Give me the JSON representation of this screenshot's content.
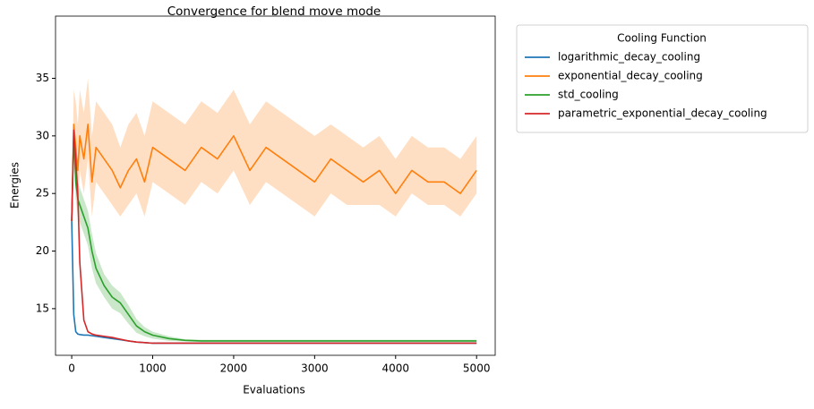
{
  "chart_data": {
    "type": "line",
    "title": "Convergence for blend move mode",
    "x_label": "Evaluations",
    "y_label": "Energies",
    "legend_title": "Cooling Function",
    "legend_position": "outside-upper-right",
    "x": [
      0,
      25,
      50,
      75,
      100,
      150,
      200,
      250,
      300,
      400,
      500,
      600,
      700,
      800,
      900,
      1000,
      1200,
      1400,
      1600,
      1800,
      2000,
      2200,
      2400,
      2600,
      2800,
      3000,
      3200,
      3400,
      3600,
      3800,
      4000,
      4200,
      4400,
      4600,
      4800,
      5000
    ],
    "xlim": [
      -200,
      5230
    ],
    "xticks": [
      0,
      1000,
      2000,
      3000,
      4000,
      5000
    ],
    "ylim": [
      10.95,
      40.4
    ],
    "yticks": [
      15,
      20,
      25,
      30,
      35
    ],
    "series": [
      {
        "name": "logarithmic_decay_cooling",
        "color": "#1f77b4",
        "values": [
          22.6,
          14.5,
          13,
          12.8,
          12.75,
          12.7,
          12.7,
          12.65,
          12.6,
          12.5,
          12.4,
          12.3,
          12.2,
          12.1,
          12.05,
          12,
          12,
          12,
          12,
          12,
          12,
          12,
          12,
          12,
          12,
          12,
          12,
          12,
          12,
          12,
          12,
          12,
          12,
          12,
          12,
          12
        ]
      },
      {
        "name": "exponential_decay_cooling",
        "color": "#ff7f0e",
        "values": [
          22.6,
          31,
          29,
          27,
          30,
          28,
          31,
          26,
          29,
          28,
          27,
          25.5,
          27,
          28,
          26,
          29,
          28,
          27,
          29,
          28,
          30,
          27,
          29,
          28,
          27,
          26,
          28,
          27,
          26,
          27,
          25,
          27,
          26,
          26,
          25,
          27
        ],
        "upper": [
          23,
          34,
          33,
          31,
          34,
          32,
          35,
          30,
          33,
          32,
          31,
          29,
          31,
          32,
          30,
          33,
          32,
          31,
          33,
          32,
          34,
          31,
          33,
          32,
          31,
          30,
          31,
          30,
          29,
          30,
          28,
          30,
          29,
          29,
          28,
          30
        ],
        "lower": [
          22,
          28,
          26,
          24,
          27,
          25,
          28,
          23,
          26,
          25,
          24,
          23,
          24,
          25,
          23,
          26,
          25,
          24,
          26,
          25,
          27,
          24,
          26,
          25,
          24,
          23,
          25,
          24,
          24,
          24,
          23,
          25,
          24,
          24,
          23,
          25
        ]
      },
      {
        "name": "std_cooling",
        "color": "#2ca02c",
        "values": [
          22.6,
          30,
          26,
          24.5,
          24,
          23,
          22,
          20,
          18.5,
          17,
          16,
          15.5,
          14.5,
          13.5,
          13,
          12.7,
          12.4,
          12.25,
          12.2,
          12.2,
          12.2,
          12.2,
          12.2,
          12.2,
          12.2,
          12.2,
          12.2,
          12.2,
          12.2,
          12.2,
          12.2,
          12.2,
          12.2,
          12.2,
          12.2,
          12.2
        ],
        "upper": [
          22.8,
          31,
          27.5,
          26,
          25.5,
          24.5,
          23.5,
          21.5,
          19.8,
          18,
          17,
          16.4,
          15.3,
          14.1,
          13.4,
          13,
          12.6,
          12.35,
          12.3,
          12.3,
          12.3,
          12.3,
          12.3,
          12.3,
          12.3,
          12.3,
          12.3,
          12.3,
          12.3,
          12.3,
          12.3,
          12.3,
          12.3,
          12.3,
          12.3,
          12.3
        ],
        "lower": [
          22.4,
          29,
          24.5,
          23,
          22.5,
          21.5,
          20.5,
          18.5,
          17.2,
          16,
          15,
          14.6,
          13.7,
          12.9,
          12.6,
          12.4,
          12.2,
          12.15,
          12.1,
          12.1,
          12.1,
          12.1,
          12.1,
          12.1,
          12.1,
          12.1,
          12.1,
          12.1,
          12.1,
          12.1,
          12.1,
          12.1,
          12.1,
          12.1,
          12.1,
          12.1
        ]
      },
      {
        "name": "parametric_exponential_decay_cooling",
        "color": "#d62728",
        "values": [
          22.6,
          30.5,
          28,
          25,
          19,
          14,
          13,
          12.8,
          12.7,
          12.6,
          12.5,
          12.35,
          12.2,
          12.1,
          12.05,
          12,
          12,
          12,
          12,
          12,
          12,
          12,
          12,
          12,
          12,
          12,
          12,
          12,
          12,
          12,
          12,
          12,
          12,
          12,
          12,
          12
        ]
      }
    ]
  }
}
